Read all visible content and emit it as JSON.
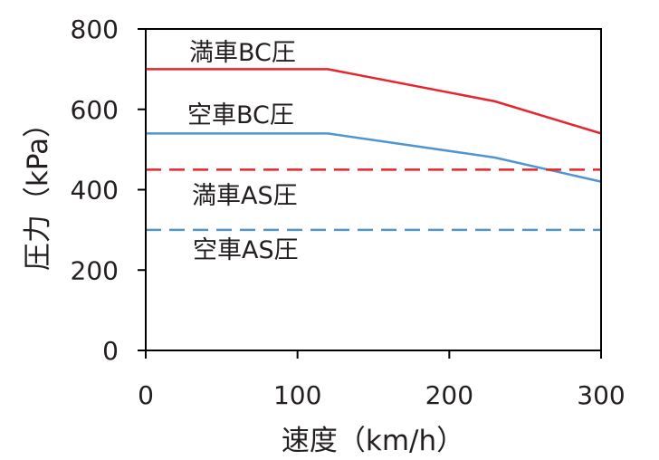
{
  "chart_data": {
    "type": "line",
    "xlabel": "速度（km/h）",
    "ylabel": "圧力（kPa）",
    "xlim": [
      0,
      300
    ],
    "ylim": [
      0,
      800
    ],
    "x_ticks": [
      0,
      100,
      200,
      300
    ],
    "y_ticks": [
      0,
      200,
      400,
      600,
      800
    ],
    "grid": false,
    "legend": "none",
    "series": [
      {
        "name": "満車BC圧",
        "color": "#e8242d",
        "dashed": false,
        "x": [
          0,
          120,
          230,
          300
        ],
        "y": [
          700,
          700,
          620,
          540
        ]
      },
      {
        "name": "空車BC圧",
        "color": "#4f95cf",
        "dashed": false,
        "x": [
          0,
          120,
          230,
          300
        ],
        "y": [
          540,
          540,
          480,
          420
        ]
      },
      {
        "name": "満車AS圧",
        "color": "#e8242d",
        "dashed": true,
        "x": [
          0,
          300
        ],
        "y": [
          450,
          450
        ]
      },
      {
        "name": "空車AS圧",
        "color": "#4f95cf",
        "dashed": true,
        "x": [
          0,
          300
        ],
        "y": [
          300,
          300
        ]
      }
    ]
  }
}
